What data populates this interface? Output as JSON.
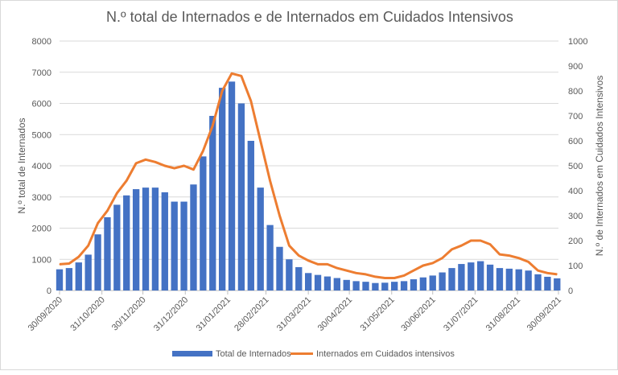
{
  "chart_data": {
    "type": "bar+line",
    "title": "N.º total de Internados e de Internados em Cuidados Intensivos",
    "y_left_label": "N.º total de Internados",
    "y_right_label": "N.º de Internados em Cuidados Intensivos",
    "y_left_range": [
      0,
      8000
    ],
    "y_right_range": [
      0,
      1000
    ],
    "y_left_ticks": [
      "0",
      "1000",
      "2000",
      "3000",
      "4000",
      "5000",
      "6000",
      "7000",
      "8000"
    ],
    "y_right_ticks": [
      "0",
      "100",
      "200",
      "300",
      "400",
      "500",
      "600",
      "700",
      "800",
      "900",
      "1000"
    ],
    "x_tick_labels": [
      "30/09/2020",
      "31/10/2020",
      "30/11/2020",
      "31/12/2020",
      "31/01/2021",
      "28/02/2021",
      "31/03/2021",
      "30/04/2021",
      "31/05/2021",
      "30/06/2021",
      "31/07/2021",
      "31/08/2021",
      "30/09/2021"
    ],
    "x_tick_days": [
      0,
      31,
      61,
      92,
      123,
      151,
      182,
      212,
      243,
      273,
      304,
      335,
      365
    ],
    "x_step_days": 7,
    "grid": true,
    "legend_position": "bottom",
    "series": [
      {
        "name": "Total de Internados",
        "type": "bar",
        "axis": "left",
        "color": "#4472C4",
        "values": [
          680,
          720,
          900,
          1150,
          1800,
          2350,
          2750,
          3050,
          3250,
          3300,
          3300,
          3150,
          2850,
          2850,
          3400,
          4300,
          5600,
          6500,
          6700,
          6000,
          4800,
          3300,
          2100,
          1400,
          1000,
          750,
          560,
          500,
          450,
          400,
          340,
          300,
          280,
          240,
          250,
          280,
          300,
          360,
          420,
          480,
          580,
          720,
          850,
          900,
          940,
          830,
          720,
          700,
          680,
          640,
          520,
          440,
          390
        ]
      },
      {
        "name": "Internados em Cuidados intensivos",
        "type": "line",
        "axis": "right",
        "color": "#ED7D31",
        "values": [
          105,
          108,
          135,
          180,
          270,
          320,
          390,
          440,
          510,
          525,
          515,
          500,
          490,
          500,
          485,
          560,
          660,
          800,
          870,
          860,
          760,
          600,
          440,
          300,
          180,
          140,
          120,
          105,
          105,
          90,
          80,
          70,
          65,
          55,
          50,
          50,
          60,
          80,
          100,
          110,
          130,
          165,
          180,
          200,
          200,
          185,
          145,
          140,
          130,
          115,
          80,
          70,
          65
        ]
      }
    ]
  }
}
